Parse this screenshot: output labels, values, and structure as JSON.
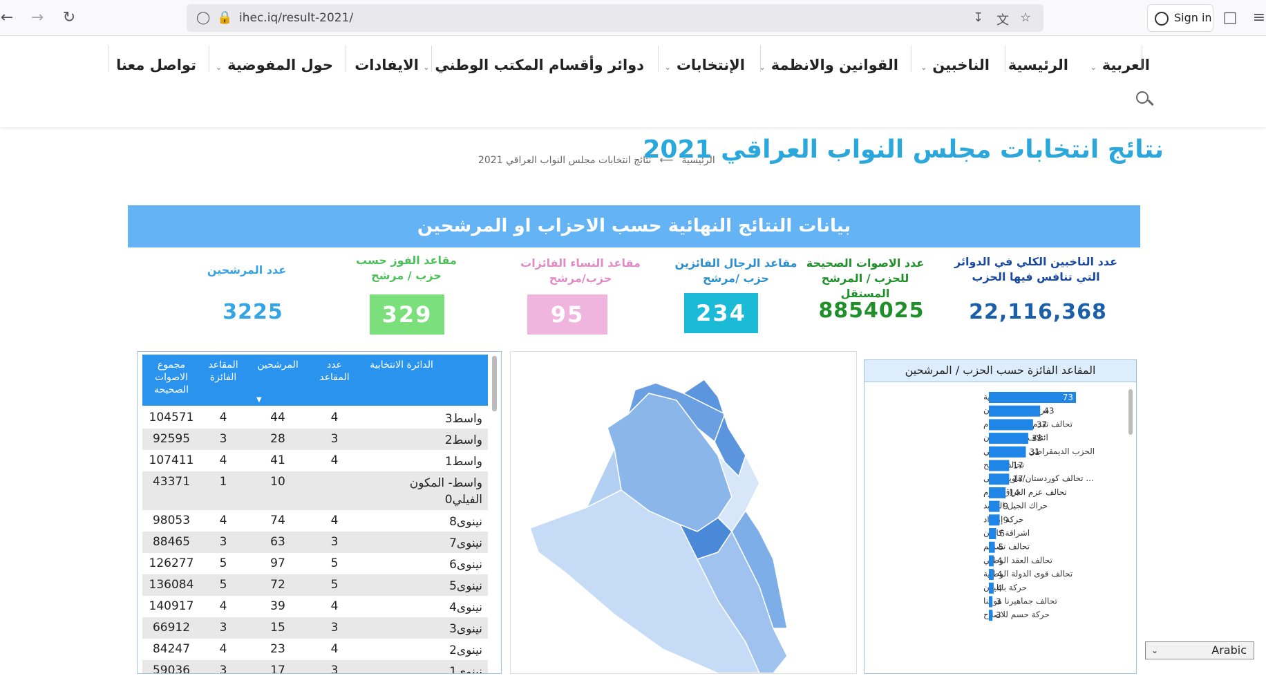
{
  "browser": {
    "url": "ihec.iq/result-2021/",
    "sign_in": "Sign in"
  },
  "nav": {
    "items": [
      {
        "label": "العربية",
        "dropdown": true
      },
      {
        "label": "الرئيسية",
        "dropdown": false
      },
      {
        "label": "الناخبين",
        "dropdown": true
      },
      {
        "label": "القوانين والانظمة",
        "dropdown": true
      },
      {
        "label": "الإنتخابات",
        "dropdown": true
      },
      {
        "label": "دوائر وأقسام المكتب الوطني",
        "dropdown": true
      },
      {
        "label": "الايفادات",
        "dropdown": false
      },
      {
        "label": "حول المفوضية",
        "dropdown": true
      },
      {
        "label": "تواصل معنا",
        "dropdown": false
      }
    ]
  },
  "page": {
    "title": "نتائج انتخابات مجلس النواب العراقي 2021",
    "breadcrumb_home": "الرئيسية",
    "breadcrumb_arrow": "⟵",
    "breadcrumb_current": "نتائج انتخابات مجلس النواب العراقي 2021"
  },
  "dashboard": {
    "banner": "بيانات النتائج النهائية حسب الاحزاب او المرشحين",
    "kpis": {
      "voters_label": "عدد الناخبين الكلي في الدوائر التي تنافس فيها الحزب",
      "voters_value": "22,116,368",
      "valid_votes_label": "عدد الاصوات الصحيحة للحزب / المرشح المستقل",
      "valid_votes_value": "8854025",
      "men_label": "مقاعد الرجال الفائزين حزب /مرشح",
      "men_value": "234",
      "women_label": "مقاعد النساء الفائزات حزب/مرشح",
      "women_value": "95",
      "winning_label": "مقاعد الفوز حسب حزب / مرشح",
      "winning_value": "329",
      "candidates_label": "عدد المرشحين",
      "candidates_value": "3225"
    },
    "colors": {
      "banner": "#64b3f4",
      "men": "#1bbad6",
      "women": "#f0b5de",
      "winning": "#7be07b",
      "voters": "#1a5fa8",
      "valid": "#1f8f2a",
      "candidates": "#34a4e4",
      "bar": "#1f86e8"
    },
    "table": {
      "headers": {
        "district": "الدائرة الانتخابية",
        "seats": "عدد المقاعد",
        "candidates": "المرشحين",
        "won": "المقاعد الفائزة",
        "votes": "مجموع الاصوات الصحيحة"
      },
      "rows": [
        {
          "district": "واسط3",
          "seats": "4",
          "candidates": "44",
          "won": "4",
          "votes": "104571"
        },
        {
          "district": "واسط2",
          "seats": "3",
          "candidates": "28",
          "won": "3",
          "votes": "92595"
        },
        {
          "district": "واسط1",
          "seats": "4",
          "candidates": "41",
          "won": "4",
          "votes": "107411"
        },
        {
          "district": "واسط- المكون الفيلي0",
          "seats": "",
          "candidates": "10",
          "won": "1",
          "votes": "43371"
        },
        {
          "district": "نينوى8",
          "seats": "4",
          "candidates": "74",
          "won": "4",
          "votes": "98053"
        },
        {
          "district": "نينوى7",
          "seats": "3",
          "candidates": "63",
          "won": "3",
          "votes": "88465"
        },
        {
          "district": "نينوى6",
          "seats": "5",
          "candidates": "97",
          "won": "5",
          "votes": "126277"
        },
        {
          "district": "نينوى5",
          "seats": "5",
          "candidates": "72",
          "won": "5",
          "votes": "136084"
        },
        {
          "district": "نينوى4",
          "seats": "4",
          "candidates": "39",
          "won": "4",
          "votes": "140917"
        },
        {
          "district": "نينوى3",
          "seats": "3",
          "candidates": "15",
          "won": "3",
          "votes": "66912"
        },
        {
          "district": "نينوى2",
          "seats": "4",
          "candidates": "23",
          "won": "4",
          "votes": "84247"
        },
        {
          "district": "نينوى1",
          "seats": "3",
          "candidates": "17",
          "won": "3",
          "votes": "59036"
        }
      ]
    },
    "bar_chart_title": "المقاعد الفائزة حسب الحزب / المرشحين"
  },
  "chart_data": {
    "type": "bar",
    "orientation": "horizontal",
    "title": "المقاعد الفائزة حسب الحزب / المرشحين",
    "categories": [
      "الكتلة الصدرية",
      "مرشحون مستقلون",
      "تحالف تقدم الوطني /تقدم",
      "ائتلاف دولة القانون",
      "الحزب الديمقراطي الكوردستاني",
      "تحالف الفتح",
      "... تحالف كوردستان/هاوپه یمانی",
      "تحالف عزم العراق /عزم",
      "حراك الجيل الجديد",
      "حركة إمتداد",
      "اشراقة كانون",
      "تحالف تصميم",
      "تحالف العقد الوطني",
      "تحالف قوى الدولة الوطنية",
      "حركة بابليون",
      "تحالف جماهيرنا هويتنا",
      "حركة حسم للاصلاح"
    ],
    "values": [
      73,
      43,
      37,
      33,
      31,
      17,
      17,
      14,
      9,
      9,
      6,
      5,
      4,
      4,
      4,
      3,
      3
    ]
  },
  "lang_select": "Arabic"
}
